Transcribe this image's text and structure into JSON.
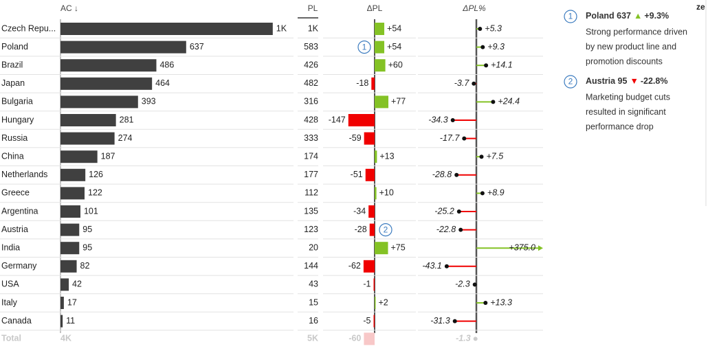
{
  "headers": {
    "ac": "AC ↓",
    "pl": "PL",
    "dpl": "ΔPL",
    "dplp": "ΔPL%"
  },
  "logo_text": "ze",
  "categories": [
    "Czech Repu...",
    "Poland",
    "Brazil",
    "Japan",
    "Bulgaria",
    "Hungary",
    "Russia",
    "China",
    "Netherlands",
    "Greece",
    "Argentina",
    "Austria",
    "India",
    "Germany",
    "USA",
    "Italy",
    "Canada"
  ],
  "ac": {
    "values": [
      1076,
      637,
      486,
      464,
      393,
      281,
      274,
      187,
      126,
      122,
      101,
      95,
      95,
      82,
      42,
      17,
      11
    ],
    "value_labels": [
      "1K",
      "637",
      "486",
      "464",
      "393",
      "281",
      "274",
      "187",
      "126",
      "122",
      "101",
      "95",
      "95",
      "82",
      "42",
      "17",
      "11"
    ]
  },
  "pl": {
    "values": [
      1022,
      583,
      426,
      482,
      316,
      428,
      333,
      174,
      177,
      112,
      135,
      123,
      20,
      144,
      43,
      15,
      16
    ],
    "value_labels": [
      "1K",
      "583",
      "426",
      "482",
      "316",
      "428",
      "333",
      "174",
      "177",
      "112",
      "135",
      "123",
      "20",
      "144",
      "43",
      "15",
      "16"
    ]
  },
  "dpl": {
    "values": [
      54,
      54,
      60,
      -18,
      77,
      -147,
      -59,
      13,
      -51,
      10,
      -34,
      -28,
      75,
      -62,
      -1,
      2,
      -5
    ],
    "value_labels": [
      "+54",
      "+54",
      "+60",
      "-18",
      "+77",
      "-147",
      "-59",
      "+13",
      "-51",
      "+10",
      "-34",
      "-28",
      "+75",
      "-62",
      "-1",
      "+2",
      "-5"
    ]
  },
  "dplp": {
    "values": [
      5.3,
      9.3,
      14.1,
      -3.7,
      24.4,
      -34.3,
      -17.7,
      7.5,
      -28.8,
      8.9,
      -25.2,
      -22.8,
      375.0,
      -43.1,
      -2.3,
      13.3,
      -31.3
    ],
    "value_labels": [
      "+5.3",
      "+9.3",
      "+14.1",
      "-3.7",
      "+24.4",
      "-34.3",
      "-17.7",
      "+7.5",
      "-28.8",
      "+8.9",
      "-25.2",
      "-22.8",
      "+375.0",
      "-43.1",
      "-2.3",
      "+13.3",
      "-31.3"
    ]
  },
  "total": {
    "label": "Total",
    "ac": 4489,
    "ac_label": "4K",
    "pl": 4549,
    "pl_label": "5K",
    "dpl": -60,
    "dpl_label": "-60",
    "dplp": -1.3,
    "dplp_label": "-1.3"
  },
  "notes": [
    {
      "number": "1",
      "row": 1,
      "name": "Poland 637",
      "marker": "▲",
      "delta": "+9.3%",
      "lines": [
        "Strong performance driven",
        "by new product line and",
        "promotion discounts"
      ]
    },
    {
      "number": "2",
      "row": 11,
      "name": "Austria 95",
      "marker": "▼",
      "delta": "-22.8%",
      "lines": [
        "Marketing budget cuts",
        "resulted in significant",
        "performance drop"
      ]
    }
  ]
}
